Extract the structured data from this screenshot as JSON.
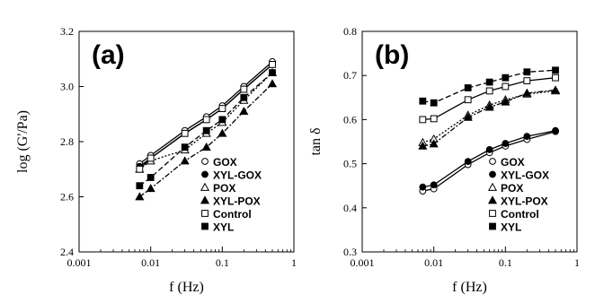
{
  "chart_data": [
    {
      "type": "line",
      "panel_label": "(a)",
      "xlabel": "f (Hz)",
      "ylabel": "log (G'/Pa)",
      "xscale": "log",
      "xlim": [
        0.001,
        1
      ],
      "ylim": [
        2.4,
        3.2
      ],
      "x_ticks": [
        "0.001",
        "0.01",
        "0.1",
        "1"
      ],
      "y_ticks": [
        "2.4",
        "2.6",
        "2.8",
        "3.0",
        "3.2"
      ],
      "grid": false,
      "legend_position": "bottom-right",
      "series": [
        {
          "name": "GOX",
          "marker": "circle-open",
          "line": "solid",
          "x": [
            0.007,
            0.01,
            0.03,
            0.06,
            0.1,
            0.2,
            0.5
          ],
          "y": [
            2.72,
            2.75,
            2.84,
            2.89,
            2.93,
            3.0,
            3.09
          ]
        },
        {
          "name": "XYL-GOX",
          "marker": "circle-filled",
          "line": "solid",
          "x": [
            0.007,
            0.01,
            0.03,
            0.06,
            0.1,
            0.2,
            0.5
          ],
          "y": [
            2.71,
            2.74,
            2.83,
            2.88,
            2.92,
            2.99,
            3.08
          ]
        },
        {
          "name": "POX",
          "marker": "triangle-open",
          "line": "dotted",
          "x": [
            0.007,
            0.01,
            0.03,
            0.06,
            0.1,
            0.2,
            0.5
          ],
          "y": [
            2.7,
            2.73,
            2.77,
            2.83,
            2.87,
            2.95,
            3.05
          ]
        },
        {
          "name": "XYL-POX",
          "marker": "triangle-filled",
          "line": "dashdot",
          "x": [
            0.007,
            0.01,
            0.03,
            0.06,
            0.1,
            0.2,
            0.5
          ],
          "y": [
            2.6,
            2.63,
            2.73,
            2.78,
            2.83,
            2.91,
            3.01
          ]
        },
        {
          "name": "Control",
          "marker": "square-open",
          "line": "solid",
          "x": [
            0.007,
            0.01,
            0.03,
            0.06,
            0.1,
            0.2,
            0.5
          ],
          "y": [
            2.7,
            2.74,
            2.83,
            2.88,
            2.92,
            2.99,
            3.08
          ]
        },
        {
          "name": "XYL",
          "marker": "square-filled",
          "line": "dashed",
          "x": [
            0.007,
            0.01,
            0.03,
            0.06,
            0.1,
            0.2,
            0.5
          ],
          "y": [
            2.64,
            2.67,
            2.78,
            2.84,
            2.88,
            2.96,
            3.05
          ]
        }
      ]
    },
    {
      "type": "line",
      "panel_label": "(b)",
      "xlabel": "f (Hz)",
      "ylabel": "tan δ",
      "xscale": "log",
      "xlim": [
        0.001,
        1
      ],
      "ylim": [
        0.3,
        0.8
      ],
      "x_ticks": [
        "0.001",
        "0.01",
        "0.1",
        "1"
      ],
      "y_ticks": [
        "0.3",
        "0.4",
        "0.5",
        "0.6",
        "0.7",
        "0.8"
      ],
      "grid": false,
      "legend_position": "bottom-right",
      "series": [
        {
          "name": "GOX",
          "marker": "circle-open",
          "line": "solid",
          "x": [
            0.007,
            0.01,
            0.03,
            0.06,
            0.1,
            0.2,
            0.5
          ],
          "y": [
            0.438,
            0.443,
            0.498,
            0.525,
            0.54,
            0.555,
            0.573
          ]
        },
        {
          "name": "XYL-GOX",
          "marker": "circle-filled",
          "line": "solid",
          "x": [
            0.007,
            0.01,
            0.03,
            0.06,
            0.1,
            0.2,
            0.5
          ],
          "y": [
            0.447,
            0.452,
            0.505,
            0.532,
            0.546,
            0.562,
            0.575
          ]
        },
        {
          "name": "POX",
          "marker": "triangle-open",
          "line": "dotted",
          "x": [
            0.007,
            0.01,
            0.03,
            0.06,
            0.1,
            0.2,
            0.5
          ],
          "y": [
            0.548,
            0.556,
            0.61,
            0.633,
            0.645,
            0.658,
            0.665
          ]
        },
        {
          "name": "XYL-POX",
          "marker": "triangle-filled",
          "line": "dashdot",
          "x": [
            0.007,
            0.01,
            0.03,
            0.06,
            0.1,
            0.2,
            0.5
          ],
          "y": [
            0.54,
            0.545,
            0.605,
            0.628,
            0.64,
            0.66,
            0.667
          ]
        },
        {
          "name": "Control",
          "marker": "square-open",
          "line": "solid",
          "x": [
            0.007,
            0.01,
            0.03,
            0.06,
            0.1,
            0.2,
            0.5
          ],
          "y": [
            0.6,
            0.602,
            0.645,
            0.665,
            0.675,
            0.688,
            0.695
          ]
        },
        {
          "name": "XYL",
          "marker": "square-filled",
          "line": "dashed",
          "x": [
            0.007,
            0.01,
            0.03,
            0.06,
            0.1,
            0.2,
            0.5
          ],
          "y": [
            0.642,
            0.638,
            0.672,
            0.685,
            0.695,
            0.708,
            0.712
          ]
        }
      ]
    }
  ]
}
